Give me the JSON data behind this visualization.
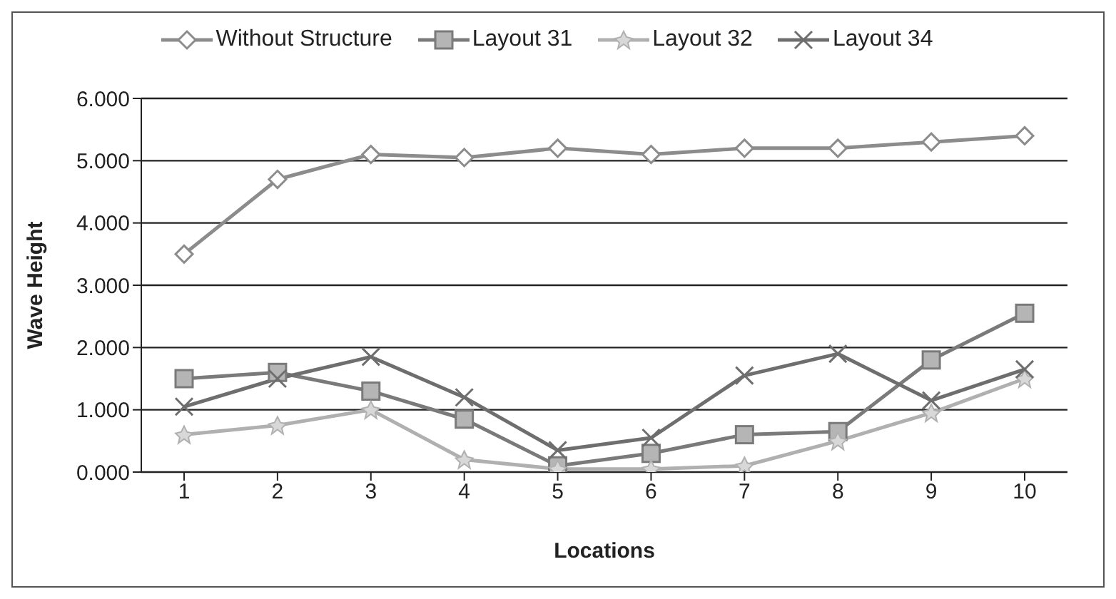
{
  "chart_data": {
    "type": "line",
    "xlabel": "Locations",
    "ylabel": "Wave Height",
    "categories": [
      "1",
      "2",
      "3",
      "4",
      "5",
      "6",
      "7",
      "8",
      "9",
      "10"
    ],
    "ylim": [
      0,
      6
    ],
    "yticks": [
      {
        "value": 0,
        "label": "0.000"
      },
      {
        "value": 1,
        "label": "1.000"
      },
      {
        "value": 2,
        "label": "2.000"
      },
      {
        "value": 3,
        "label": "3.000"
      },
      {
        "value": 4,
        "label": "4.000"
      },
      {
        "value": 5,
        "label": "5.000"
      },
      {
        "value": 6,
        "label": "6.000"
      }
    ],
    "grid": "y",
    "legend": "top",
    "series": [
      {
        "name": "Without Structure",
        "color": "#8c8c8c",
        "marker": "diamond",
        "values": [
          3.5,
          4.7,
          5.1,
          5.05,
          5.2,
          5.1,
          5.2,
          5.2,
          5.3,
          5.4
        ]
      },
      {
        "name": "Layout 31",
        "color": "#7a7a7a",
        "marker": "square",
        "values": [
          1.5,
          1.6,
          1.3,
          0.85,
          0.1,
          0.3,
          0.6,
          0.65,
          1.8,
          2.55
        ]
      },
      {
        "name": "Layout 32",
        "color": "#b0b0b0",
        "marker": "star",
        "values": [
          0.6,
          0.75,
          1.0,
          0.2,
          0.05,
          0.05,
          0.1,
          0.5,
          0.95,
          1.5
        ]
      },
      {
        "name": "Layout 34",
        "color": "#6e6e6e",
        "marker": "cross",
        "values": [
          1.05,
          1.5,
          1.85,
          1.2,
          0.35,
          0.55,
          1.55,
          1.9,
          1.15,
          1.65
        ]
      }
    ]
  }
}
